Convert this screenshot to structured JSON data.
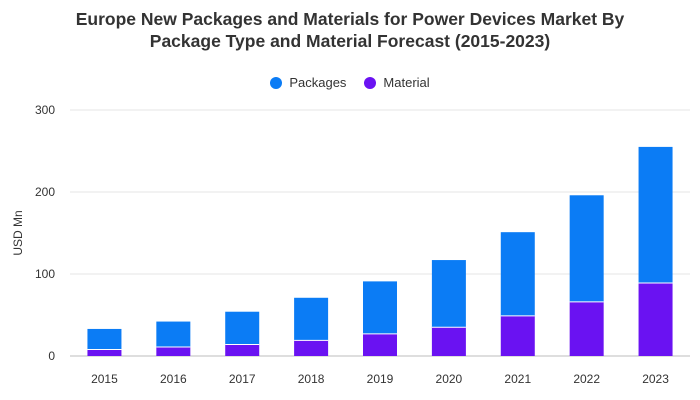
{
  "chart_data": {
    "type": "bar",
    "stacked": true,
    "title_line1": "Europe New Packages and Materials for Power Devices Market By",
    "title_line2": "Package Type and Material Forecast (2015-2023)",
    "xlabel": "",
    "ylabel": "USD Mn",
    "ylim": [
      0,
      300
    ],
    "yticks": [
      "0",
      "100",
      "200",
      "300"
    ],
    "ytick_values": [
      0,
      100,
      200,
      300
    ],
    "grid": true,
    "legend_position": "top-center",
    "categories": [
      "2015",
      "2016",
      "2017",
      "2018",
      "2019",
      "2020",
      "2021",
      "2022",
      "2023"
    ],
    "series": [
      {
        "name": "Material",
        "color": "#6a12f2",
        "values": [
          8,
          11,
          14,
          19,
          27,
          35,
          49,
          66,
          89
        ]
      },
      {
        "name": "Packages",
        "color": "#0b7cf5",
        "values": [
          25,
          31,
          40,
          52,
          64,
          82,
          102,
          130,
          166
        ]
      }
    ],
    "legend": [
      {
        "label": "Packages",
        "color": "#0b7cf5"
      },
      {
        "label": "Material",
        "color": "#6a12f2"
      }
    ]
  }
}
